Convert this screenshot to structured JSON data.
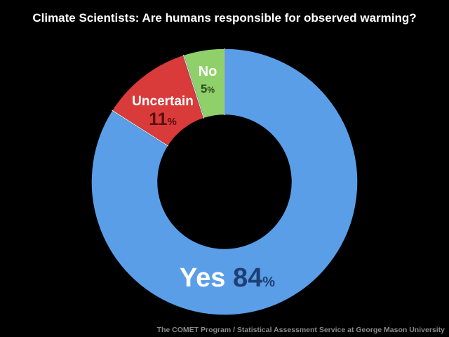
{
  "title": "Climate Scientists: Are humans responsible for observed warming?",
  "credit": "The COMET Program / Statistical Assessment Service at George Mason University",
  "chart_data": {
    "type": "pie",
    "style": "donut",
    "title": "Climate Scientists: Are humans responsible for observed warming?",
    "slices": [
      {
        "label": "Yes",
        "value": 84,
        "value_text": "84",
        "unit": "%",
        "color": "#5a9ee8",
        "label_color": "#ffffff",
        "value_color": "#1f3f73"
      },
      {
        "label": "Uncertain",
        "value": 11,
        "value_text": "11",
        "unit": "%",
        "color": "#d93a3a",
        "label_color": "#ffffff",
        "value_color": "#5a0f0f"
      },
      {
        "label": "No",
        "value": 5,
        "value_text": "5",
        "unit": "%",
        "color": "#8fd06a",
        "label_color": "#ffffff",
        "value_color": "#2e4a1e"
      }
    ],
    "start": "12 o'clock",
    "direction": "clockwise"
  }
}
